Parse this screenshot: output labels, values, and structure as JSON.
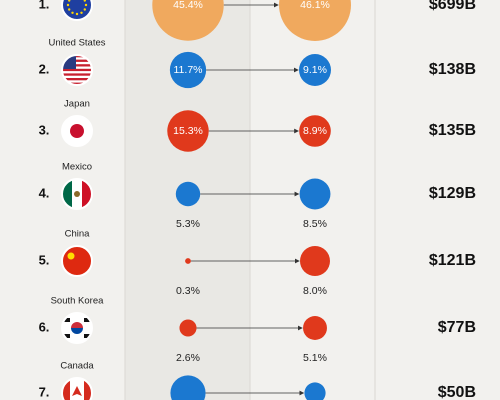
{
  "rows": [
    {
      "rank": "1.",
      "share_before": 45.4,
      "share_before_label": "45.4%",
      "share_after": 46.1,
      "share_after_label": "46.1%",
      "amount": "$699B",
      "color": "#f0a95e"
    },
    {
      "rank": "2.",
      "country": "United States",
      "share_before": 11.7,
      "share_before_label": "11.7%",
      "share_after": 9.1,
      "share_after_label": "9.1%",
      "amount": "$138B",
      "color": "#1b78d0"
    },
    {
      "rank": "3.",
      "country": "Japan",
      "share_before": 15.3,
      "share_before_label": "15.3%",
      "share_after": 8.9,
      "share_after_label": "8.9%",
      "amount": "$135B",
      "color": "#e0391c"
    },
    {
      "rank": "4.",
      "country": "Mexico",
      "share_before": 5.3,
      "share_before_label": "5.3%",
      "share_after": 8.5,
      "share_after_label": "8.5%",
      "amount": "$129B",
      "color": "#1b78d0"
    },
    {
      "rank": "5.",
      "country": "China",
      "share_before": 0.3,
      "share_before_label": "0.3%",
      "share_after": 8.0,
      "share_after_label": "8.0%",
      "amount": "$121B",
      "color": "#e0391c"
    },
    {
      "rank": "6.",
      "country": "South Korea",
      "share_before": 2.6,
      "share_before_label": "2.6%",
      "share_after": 5.1,
      "share_after_label": "5.1%",
      "amount": "$77B",
      "color": "#e0391c"
    },
    {
      "rank": "7.",
      "country": "Canada",
      "share_before": 11.0,
      "share_after": 4.0,
      "amount": "$50B",
      "color": "#1b78d0"
    }
  ]
}
